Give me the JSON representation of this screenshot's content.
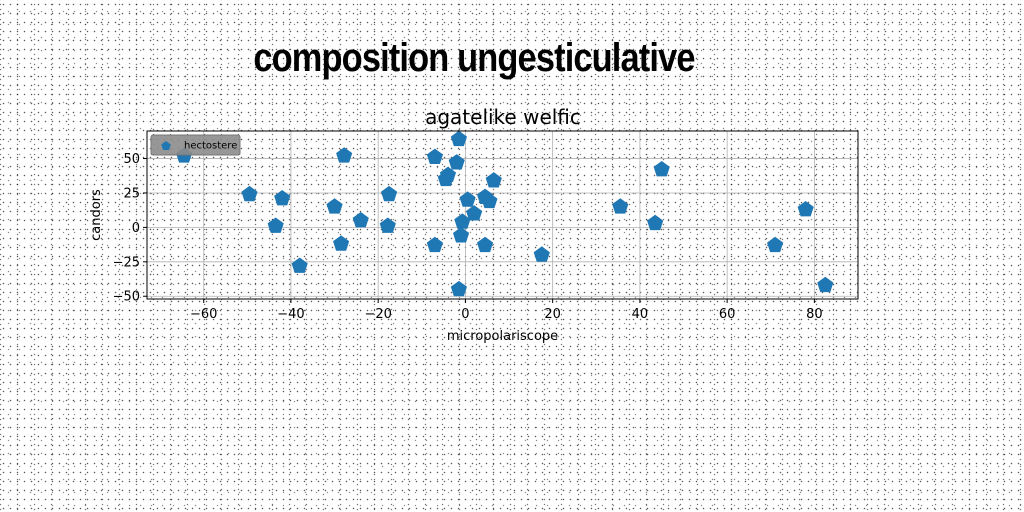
{
  "figure_title": "composition ungesticulative",
  "chart_data": {
    "type": "scatter",
    "title": "agatelike welfic",
    "xlabel": "micropolariscope",
    "ylabel": "candors",
    "xlim": [
      -73,
      90
    ],
    "ylim": [
      -52,
      70
    ],
    "xticks": [
      -60,
      -40,
      -20,
      0,
      20,
      40,
      60,
      80
    ],
    "yticks": [
      -50,
      -25,
      0,
      25,
      50
    ],
    "grid": true,
    "legend_position": "top-left",
    "marker": "pentagon",
    "series": [
      {
        "name": "hectostere",
        "color": "#1f77b4",
        "points": [
          [
            -64.5,
            52
          ],
          [
            -49.5,
            24
          ],
          [
            -42,
            21
          ],
          [
            -43.5,
            1
          ],
          [
            -38,
            -28
          ],
          [
            -30,
            15
          ],
          [
            -28.5,
            -12
          ],
          [
            -27.8,
            52
          ],
          [
            -24,
            5
          ],
          [
            -17.5,
            24
          ],
          [
            -17.8,
            1
          ],
          [
            -7,
            51
          ],
          [
            -7,
            -13
          ],
          [
            -4,
            38
          ],
          [
            -4.5,
            35
          ],
          [
            -2,
            47
          ],
          [
            -1.5,
            64
          ],
          [
            -1.5,
            -45
          ],
          [
            -1,
            -6
          ],
          [
            -0.7,
            4
          ],
          [
            0.5,
            20
          ],
          [
            2,
            10
          ],
          [
            4.5,
            22
          ],
          [
            4.5,
            -13
          ],
          [
            5.5,
            19
          ],
          [
            6.5,
            34
          ],
          [
            17.5,
            -20
          ],
          [
            35.5,
            15
          ],
          [
            43.5,
            3
          ],
          [
            45,
            42
          ],
          [
            71,
            -13
          ],
          [
            78,
            13
          ],
          [
            82.5,
            -42
          ]
        ]
      }
    ]
  }
}
